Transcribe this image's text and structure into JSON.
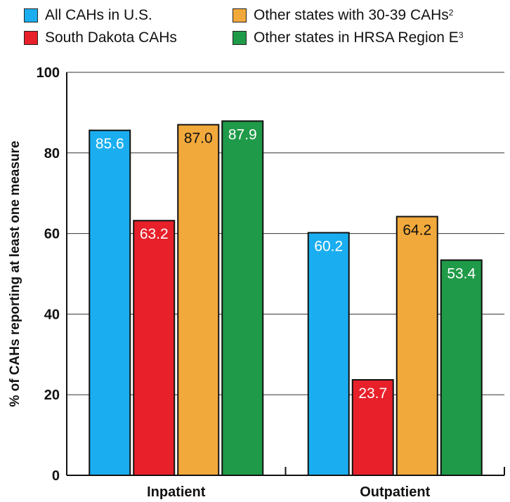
{
  "legend": [
    {
      "label": "All CAHs in U.S.",
      "sup": "",
      "color": "#1aaef0"
    },
    {
      "label": "South Dakota CAHs",
      "sup": "",
      "color": "#e8202a"
    },
    {
      "label": "Other states with 30-39 CAHs",
      "sup": "2",
      "color": "#f2a93b"
    },
    {
      "label": "Other states in HRSA Region E",
      "sup": "3",
      "color": "#1f9a48"
    }
  ],
  "chart_data": {
    "type": "bar",
    "categories": [
      "Inpatient",
      "Outpatient"
    ],
    "series": [
      {
        "name": "All CAHs in U.S.",
        "values": [
          85.6,
          60.2
        ],
        "color": "#1aaef0",
        "label_color": "#ffffff"
      },
      {
        "name": "South Dakota CAHs",
        "values": [
          63.2,
          23.7
        ],
        "color": "#e8202a",
        "label_color": "#ffffff"
      },
      {
        "name": "Other states with 30-39 CAHs",
        "values": [
          87.0,
          64.2
        ],
        "color": "#f2a93b",
        "label_color": "#111111"
      },
      {
        "name": "Other states in HRSA Region E",
        "values": [
          87.9,
          53.4
        ],
        "color": "#1f9a48",
        "label_color": "#ffffff"
      }
    ],
    "data_labels": [
      [
        "85.6",
        "60.2"
      ],
      [
        "63.2",
        "23.7"
      ],
      [
        "87.0",
        "64.2"
      ],
      [
        "87.9",
        "53.4"
      ]
    ],
    "title": "",
    "xlabel": "",
    "ylabel": "% of CAHs reporting at least one measure",
    "ylim": [
      0,
      100
    ],
    "yticks": [
      0,
      20,
      40,
      60,
      80,
      100
    ],
    "ytick_labels": [
      "0",
      "20",
      "40",
      "60",
      "80",
      "100"
    ],
    "grid": true,
    "legend_position": "top"
  }
}
